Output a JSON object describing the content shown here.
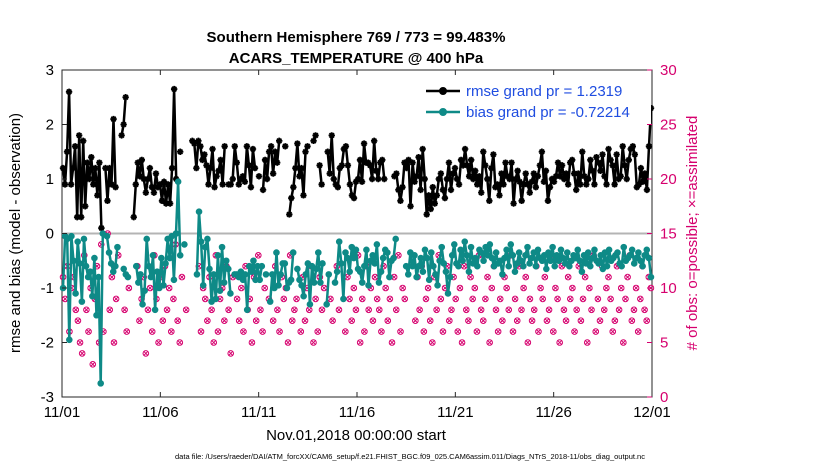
{
  "chart_data": {
    "type": "line",
    "title": "Southern Hemisphere 769 / 773 = 99.483%",
    "subtitle": "ACARS_TEMPERATURE @ 400 hPa",
    "xlabel": "Nov.01,2018 00:00:00 start",
    "ylabel_left": "rmse and bias (model - observation)",
    "ylabel_right": "# of obs: o=possible; ×=assimilated",
    "xlim": [
      0,
      30
    ],
    "ylim_left": [
      -3,
      3
    ],
    "ylim_right": [
      0,
      30
    ],
    "x_ticks": [
      0,
      5,
      10,
      15,
      20,
      25,
      30
    ],
    "x_tick_labels": [
      "11/01",
      "11/06",
      "11/11",
      "11/16",
      "11/21",
      "11/26",
      "12/01"
    ],
    "y_ticks_left": [
      -3,
      -2,
      -1,
      0,
      1,
      2,
      3
    ],
    "y_tick_labels_left": [
      "-3",
      "-2",
      "-1",
      "0",
      "1",
      "2",
      "3"
    ],
    "y_ticks_right": [
      0,
      5,
      10,
      15,
      20,
      25,
      30
    ],
    "y_tick_labels_right": [
      "0",
      "5",
      "10",
      "15",
      "20",
      "25",
      "30"
    ],
    "zero_line": 0,
    "footer": "data file: /Users/raeder/DAI/ATM_forcXX/CAM6_setup/f.e21.FHIST_BGC.f09_025.CAM6assim.011/Diags_NTrS_2018-11/obs_diag_output.nc",
    "colors": {
      "rmse": "#000000",
      "bias": "#0e8a87",
      "obs": "#d6006e",
      "zero_line": "#b4b4b4",
      "legend_text": "#1f4de0"
    },
    "series": [
      {
        "name": "rmse grand pr = 1.2319",
        "key": "rmse",
        "values": [
          1.2,
          0.9,
          1.5,
          2.6,
          0.9,
          1.2,
          1.6,
          0.3,
          1.8,
          0.3,
          1.7,
          0.5,
          1.3,
          1.0,
          1.4,
          0.9,
          1.2,
          0.7,
          1.3,
          0.1,
          null,
          1.2,
          0.6,
          1.2,
          0.9,
          2.1,
          0.85,
          null,
          null,
          1.8,
          2.0,
          2.5,
          null,
          null,
          null,
          0.3,
          0.9,
          1.3,
          1.05,
          1.35,
          1.0,
          0.75,
          1.0,
          1.2,
          0.85,
          0.75,
          1.1,
          0.85,
          0.9,
          0.6,
          0.95,
          0.55,
          0.9,
          0.55,
          1.2,
          2.65,
          1.0,
          null,
          1.5,
          null,
          null,
          null,
          null,
          null,
          1.7,
          1.65,
          1.2,
          1.7,
          1.6,
          1.35,
          1.45,
          1.25,
          0.9,
          1.2,
          1.55,
          0.85,
          1.05,
          1.15,
          1.35,
          0.9,
          1.6,
          null,
          0.9,
          0.9,
          1.0,
          1.6,
          1.3,
          0.9,
          1.0,
          1.05,
          0.95,
          1.6,
          1.25,
          0.85,
          1.55,
          1.2,
          null,
          1.05,
          null,
          0.8,
          1.35,
          1.0,
          1.5,
          1.6,
          1.1,
          1.5,
          1.3,
          1.7,
          null,
          null,
          1.6,
          null,
          0.35,
          0.65,
          0.85,
          1.2,
          1.65,
          1.05,
          1.2,
          0.7,
          1.5,
          1.6,
          null,
          null,
          1.7,
          1.8,
          null,
          1.25,
          0.9,
          null,
          null,
          1.5,
          1.1,
          1.8,
          1.0,
          0.9,
          0.85,
          1.2,
          1.25,
          1.55,
          1.6,
          1.25,
          0.9,
          0.7,
          0.65,
          0.95,
          1.0,
          1.35,
          0.95,
          1.65,
          1.3,
          1.3,
          1.25,
          1.0,
          1.7,
          1.15,
          1.0,
          1.3,
          1.35,
          1.0,
          null,
          null,
          null,
          null,
          1.05,
          1.1,
          0.8,
          0.6,
          0.85,
          1.3,
          1.2,
          1.35,
          0.5,
          1.3,
          0.95,
          1.05,
          1.4,
          0.8,
          1.55,
          1.0,
          0.35,
          0.7,
          0.45,
          0.85,
          0.55,
          0.7,
          1.0,
          1.1,
          0.8,
          0.65,
          1.0,
          1.3,
          0.8,
          1.1,
          1.2,
          1.0,
          0.9,
          1.35,
          1.25,
          1.55,
          1.25,
          1.05,
          1.35,
          1.0,
          1.15,
          0.9,
          1.05,
          0.75,
          1.5,
          1.25,
          1.0,
          0.6,
          1.2,
          1.45,
          0.85,
          0.9,
          0.7,
          1.1,
          0.9,
          1.3,
          1.05,
          1.0,
          1.3,
          0.55,
          1.0,
          1.15,
          0.95,
          0.6,
          0.9,
          1.1,
          0.9,
          0.75,
          0.95,
          1.1,
          0.85,
          1.05,
          1.25,
          1.5,
          0.95,
          1.15,
          0.6,
          0.85,
          1.0,
          0.95,
          1.05,
          1.3,
          1.05,
          1.25,
          1.0,
          1.1,
          0.9,
          1.3,
          1.35,
          1.1,
          0.8,
          1.1,
          0.9,
          1.5,
          1.05,
          0.9,
          1.0,
          1.35,
          1.15,
          0.9,
          1.4,
          1.3,
          1.15,
          1.45,
          1.05,
          0.9,
          1.55,
          1.35,
          1.25,
          0.9,
          1.45,
          1.0,
          1.05,
          1.6,
          1.25,
          1.0,
          1.35,
          1.55,
          1.6,
          1.45,
          0.85,
          0.9,
          1.2,
          0.95,
          1.1,
          0.8,
          1.6,
          2.3
        ]
      },
      {
        "name": "bias grand pr = -0.72214",
        "key": "bias",
        "values": [
          -1.0,
          -0.05,
          -0.1,
          -1.95,
          -0.05,
          -0.5,
          -1.1,
          -0.15,
          -0.55,
          -1.25,
          -0.1,
          -0.6,
          -0.8,
          -0.7,
          -1.15,
          -0.45,
          -1.5,
          -0.8,
          -2.75,
          0.0,
          null,
          -0.05,
          -0.35,
          -0.55,
          -0.7,
          -0.6,
          -0.25,
          null,
          null,
          -0.65,
          -0.75,
          -0.8,
          null,
          null,
          null,
          -0.6,
          -0.9,
          -0.75,
          -1.3,
          -1.05,
          -0.1,
          -0.6,
          -0.8,
          -0.4,
          -1.4,
          -0.7,
          -1.0,
          -0.45,
          -0.95,
          -0.55,
          -0.1,
          -0.45,
          -0.05,
          -0.85,
          0.0,
          0.95,
          -0.4,
          null,
          -0.2,
          null,
          null,
          null,
          null,
          null,
          -0.75,
          0.4,
          -0.15,
          -0.95,
          -0.25,
          -0.1,
          -0.65,
          -1.25,
          -0.75,
          -1.2,
          -0.4,
          -1.05,
          -0.25,
          -0.9,
          -0.5,
          -0.65,
          -1.1,
          null,
          -0.75,
          -0.75,
          -0.8,
          -0.7,
          -0.85,
          -0.75,
          -1.4,
          -0.6,
          -0.7,
          -0.5,
          -0.85,
          -0.6,
          -0.85,
          -0.6,
          null,
          -0.75,
          null,
          -1.25,
          -0.75,
          -1.0,
          -0.35,
          -0.95,
          -0.75,
          -0.55,
          -0.55,
          -1.0,
          -0.9,
          -0.85,
          -0.35,
          null,
          -0.65,
          -0.85,
          -0.95,
          -1.15,
          -0.75,
          -0.55,
          -1.3,
          -0.6,
          -0.9,
          -0.65,
          -0.35,
          -0.9,
          -0.55,
          null,
          -1.3,
          -0.75,
          null,
          null,
          -0.9,
          -0.7,
          -0.15,
          -0.55,
          -1.2,
          -0.35,
          -0.45,
          -0.7,
          -0.25,
          -0.45,
          -0.3,
          -0.65,
          -0.7,
          -0.9,
          -0.6,
          -0.3,
          -0.95,
          -0.5,
          -0.4,
          -0.55,
          -0.2,
          -0.9,
          -0.7,
          -0.45,
          -0.3,
          -0.35,
          -0.8,
          -0.5,
          -0.45,
          -0.1,
          null,
          null,
          null,
          null,
          -0.6,
          -0.75,
          -0.35,
          -0.6,
          -0.4,
          -0.8,
          -0.6,
          -0.45,
          -0.7,
          -0.3,
          -0.45,
          -0.85,
          -0.35,
          -0.6,
          -0.75,
          -0.95,
          -0.5,
          -0.25,
          -0.55,
          -0.7,
          -1.1,
          -0.8,
          -0.4,
          -0.2,
          -0.55,
          -0.6,
          -0.3,
          -0.5,
          -0.15,
          -0.4,
          -0.7,
          -0.25,
          -0.55,
          -0.45,
          -0.6,
          -0.3,
          -0.35,
          -0.5,
          -0.25,
          -0.4,
          -0.2,
          -0.45,
          -0.6,
          -0.35,
          -0.55,
          -0.5,
          -0.75,
          -0.45,
          -0.3,
          -0.6,
          -0.2,
          -0.4,
          -0.7,
          -0.55,
          -0.35,
          -0.5,
          -0.6,
          -0.4,
          -0.25,
          -0.55,
          -0.45,
          -0.35,
          -0.6,
          -0.3,
          -0.45,
          -0.5,
          -0.4,
          -0.65,
          -0.35,
          -0.5,
          -0.25,
          -0.6,
          -0.4,
          -0.5,
          -0.3,
          -0.45,
          -0.55,
          -0.35,
          -0.6,
          -0.5,
          -0.4,
          -0.45,
          -0.3,
          -0.5,
          -0.7,
          -0.4,
          -0.55,
          -0.35,
          -0.6,
          -0.45,
          -0.3,
          -0.5,
          -0.55,
          -0.4,
          -0.65,
          -0.35,
          -0.6,
          -0.3,
          -0.5,
          -0.45,
          -0.4,
          -0.35,
          -0.55,
          -0.6,
          -0.25,
          -0.5,
          -0.45,
          -0.4,
          -0.3,
          -0.55,
          -0.45,
          -0.35,
          -0.5,
          -0.6,
          -0.4,
          -0.3,
          -0.45,
          -0.8
        ]
      }
    ],
    "obs_possible": [
      11,
      9,
      12,
      6,
      10,
      11,
      8,
      7,
      5,
      4,
      13,
      8,
      6,
      10,
      3,
      9,
      12,
      5,
      14,
      6,
      null,
      15,
      8,
      11,
      5,
      9,
      13,
      null,
      null,
      8,
      6,
      10,
      null,
      null,
      null,
      12,
      7,
      9,
      11,
      4,
      8,
      10,
      6,
      13,
      9,
      5,
      11,
      7,
      12,
      8,
      10,
      6,
      9,
      14,
      7,
      5,
      11,
      null,
      8,
      null,
      null,
      null,
      null,
      null,
      12,
      6,
      10,
      9,
      7,
      11,
      8,
      5,
      13,
      6,
      9,
      10,
      7,
      12,
      8,
      4,
      11,
      null,
      9,
      7,
      10,
      6,
      12,
      8,
      9,
      5,
      11,
      7,
      13,
      8,
      6,
      10,
      null,
      9,
      null,
      7,
      12,
      8,
      6,
      11,
      9,
      10,
      5,
      13,
      7,
      8,
      9,
      null,
      6,
      11,
      7,
      10,
      8,
      12,
      5,
      9,
      6,
      11,
      8,
      10,
      null,
      null,
      9,
      7,
      null,
      12,
      8,
      null,
      null,
      6,
      11,
      9,
      7,
      10,
      8,
      13,
      5,
      9,
      6,
      12,
      8,
      10,
      7,
      11,
      9,
      8,
      6,
      12,
      10,
      7,
      9,
      5,
      11,
      8,
      13,
      6,
      10,
      9,
      null,
      null,
      null,
      null,
      7,
      11,
      8,
      12,
      6,
      9,
      10,
      7,
      5,
      11,
      8,
      13,
      9,
      6,
      10,
      12,
      7,
      8,
      11,
      9,
      6,
      10,
      5,
      12,
      8,
      7,
      11,
      9,
      10,
      6,
      13,
      8,
      7,
      9,
      11,
      5,
      10,
      12,
      8,
      6,
      9,
      7,
      11,
      10,
      8,
      13,
      6,
      9,
      7,
      12,
      8,
      10,
      11,
      5,
      9,
      7,
      8,
      12,
      6,
      10,
      9,
      11,
      7,
      8,
      13,
      6,
      10,
      9,
      5,
      12,
      8,
      7,
      11,
      9,
      10,
      6,
      8,
      12,
      7,
      9,
      11,
      5,
      10,
      8,
      13,
      6,
      9,
      7,
      12,
      8,
      10,
      11,
      9,
      6,
      7,
      12,
      8,
      10,
      5,
      9,
      11,
      13,
      7,
      8,
      10,
      6,
      9,
      12,
      8,
      7,
      11,
      10
    ]
  }
}
